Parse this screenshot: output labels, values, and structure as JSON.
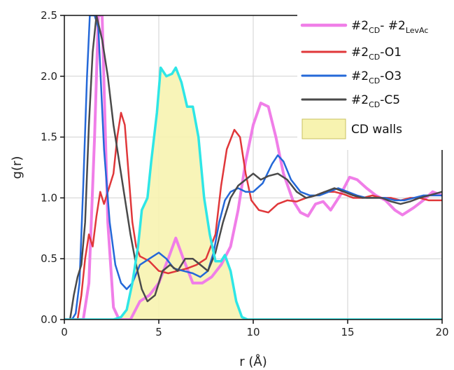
{
  "chart_data": {
    "type": "line",
    "xlabel": "r (Å)",
    "ylabel": "g(r)",
    "xlim": [
      0,
      20
    ],
    "ylim": [
      0,
      2.5
    ],
    "xticks": [
      "0",
      "5",
      "10",
      "15",
      "20"
    ],
    "yticks": [
      "0.0",
      "0.5",
      "1.0",
      "1.5",
      "2.0",
      "2.5"
    ],
    "grid": true,
    "legend_position": "top-right",
    "series": [
      {
        "name": "#2CD- #2LevAc",
        "label_main": "#2",
        "label_sub1": "CD",
        "label_mid": "- #2",
        "label_sub2": "LevAc",
        "color": "#f07ee8",
        "width": 4,
        "points": [
          [
            0,
            0
          ],
          [
            1.0,
            0
          ],
          [
            1.3,
            0.3
          ],
          [
            1.6,
            1.5
          ],
          [
            1.8,
            2.5
          ],
          [
            2.0,
            2.5
          ],
          [
            2.3,
            0.8
          ],
          [
            2.6,
            0.1
          ],
          [
            2.9,
            0.0
          ],
          [
            3.5,
            0.0
          ],
          [
            4.0,
            0.15
          ],
          [
            4.5,
            0.2
          ],
          [
            5.0,
            0.3
          ],
          [
            5.5,
            0.5
          ],
          [
            5.9,
            0.67
          ],
          [
            6.3,
            0.5
          ],
          [
            6.8,
            0.3
          ],
          [
            7.3,
            0.3
          ],
          [
            7.8,
            0.35
          ],
          [
            8.3,
            0.45
          ],
          [
            8.8,
            0.6
          ],
          [
            9.2,
            0.9
          ],
          [
            9.6,
            1.3
          ],
          [
            10.0,
            1.6
          ],
          [
            10.4,
            1.78
          ],
          [
            10.8,
            1.75
          ],
          [
            11.2,
            1.5
          ],
          [
            11.6,
            1.2
          ],
          [
            12.1,
            0.98
          ],
          [
            12.5,
            0.88
          ],
          [
            12.9,
            0.85
          ],
          [
            13.3,
            0.95
          ],
          [
            13.7,
            0.97
          ],
          [
            14.1,
            0.9
          ],
          [
            14.6,
            1.02
          ],
          [
            15.1,
            1.17
          ],
          [
            15.5,
            1.15
          ],
          [
            16.0,
            1.08
          ],
          [
            16.5,
            1.02
          ],
          [
            17.0,
            0.98
          ],
          [
            17.5,
            0.9
          ],
          [
            17.9,
            0.86
          ],
          [
            18.5,
            0.92
          ],
          [
            19.0,
            0.98
          ],
          [
            19.5,
            1.05
          ],
          [
            20.0,
            1.02
          ]
        ]
      },
      {
        "name": "#2CD-O1",
        "label_main": "#2",
        "label_sub1": "CD",
        "label_mid": "-O1",
        "label_sub2": "",
        "color": "#e0373a",
        "width": 2.5,
        "points": [
          [
            0,
            0
          ],
          [
            0.7,
            0
          ],
          [
            0.9,
            0.2
          ],
          [
            1.1,
            0.5
          ],
          [
            1.3,
            0.7
          ],
          [
            1.5,
            0.6
          ],
          [
            1.7,
            0.85
          ],
          [
            1.9,
            1.05
          ],
          [
            2.1,
            0.95
          ],
          [
            2.3,
            1.05
          ],
          [
            2.6,
            1.2
          ],
          [
            2.8,
            1.5
          ],
          [
            3.0,
            1.7
          ],
          [
            3.2,
            1.6
          ],
          [
            3.4,
            1.2
          ],
          [
            3.6,
            0.8
          ],
          [
            3.8,
            0.6
          ],
          [
            4.0,
            0.52
          ],
          [
            4.5,
            0.48
          ],
          [
            5.0,
            0.4
          ],
          [
            5.5,
            0.38
          ],
          [
            6.0,
            0.4
          ],
          [
            6.5,
            0.42
          ],
          [
            7.0,
            0.45
          ],
          [
            7.5,
            0.5
          ],
          [
            8.0,
            0.7
          ],
          [
            8.3,
            1.1
          ],
          [
            8.6,
            1.4
          ],
          [
            9.0,
            1.56
          ],
          [
            9.3,
            1.5
          ],
          [
            9.6,
            1.2
          ],
          [
            9.9,
            0.98
          ],
          [
            10.3,
            0.9
          ],
          [
            10.8,
            0.88
          ],
          [
            11.3,
            0.95
          ],
          [
            11.8,
            0.98
          ],
          [
            12.3,
            0.97
          ],
          [
            12.8,
            1.0
          ],
          [
            13.3,
            1.02
          ],
          [
            13.8,
            1.05
          ],
          [
            14.3,
            1.05
          ],
          [
            14.8,
            1.03
          ],
          [
            15.3,
            1.0
          ],
          [
            15.8,
            1.0
          ],
          [
            16.3,
            1.02
          ],
          [
            16.8,
            1.0
          ],
          [
            17.3,
            1.0
          ],
          [
            17.8,
            0.98
          ],
          [
            18.3,
            1.0
          ],
          [
            18.8,
            1.0
          ],
          [
            19.3,
            0.98
          ],
          [
            20.0,
            0.98
          ]
        ]
      },
      {
        "name": "#2CD-O3",
        "label_main": "#2",
        "label_sub1": "CD",
        "label_mid": "-O3",
        "label_sub2": "",
        "color": "#2468d8",
        "width": 2.5,
        "points": [
          [
            0,
            0
          ],
          [
            0.4,
            0
          ],
          [
            0.6,
            0.05
          ],
          [
            0.8,
            0.3
          ],
          [
            1.0,
            1.1
          ],
          [
            1.2,
            2.0
          ],
          [
            1.35,
            2.5
          ],
          [
            1.6,
            2.5
          ],
          [
            1.8,
            2.4
          ],
          [
            2.1,
            1.4
          ],
          [
            2.4,
            0.8
          ],
          [
            2.7,
            0.45
          ],
          [
            3.0,
            0.3
          ],
          [
            3.3,
            0.25
          ],
          [
            3.6,
            0.3
          ],
          [
            4.0,
            0.45
          ],
          [
            4.5,
            0.5
          ],
          [
            5.0,
            0.55
          ],
          [
            5.4,
            0.5
          ],
          [
            5.8,
            0.42
          ],
          [
            6.3,
            0.4
          ],
          [
            6.8,
            0.38
          ],
          [
            7.2,
            0.35
          ],
          [
            7.6,
            0.4
          ],
          [
            7.9,
            0.55
          ],
          [
            8.2,
            0.8
          ],
          [
            8.5,
            0.98
          ],
          [
            8.8,
            1.05
          ],
          [
            9.2,
            1.08
          ],
          [
            9.6,
            1.05
          ],
          [
            10.0,
            1.05
          ],
          [
            10.5,
            1.12
          ],
          [
            11.0,
            1.28
          ],
          [
            11.3,
            1.35
          ],
          [
            11.6,
            1.3
          ],
          [
            12.0,
            1.15
          ],
          [
            12.5,
            1.05
          ],
          [
            13.0,
            1.02
          ],
          [
            13.5,
            1.02
          ],
          [
            14.0,
            1.05
          ],
          [
            14.5,
            1.08
          ],
          [
            15.0,
            1.05
          ],
          [
            15.5,
            1.02
          ],
          [
            16.0,
            1.0
          ],
          [
            16.5,
            1.0
          ],
          [
            17.0,
            1.0
          ],
          [
            17.5,
            0.98
          ],
          [
            18.0,
            0.98
          ],
          [
            18.5,
            1.0
          ],
          [
            19.0,
            1.02
          ],
          [
            19.5,
            1.02
          ],
          [
            20.0,
            1.02
          ]
        ]
      },
      {
        "name": "#2CD-C5",
        "label_main": "#2",
        "label_sub1": "CD",
        "label_mid": "-C5",
        "label_sub2": "",
        "color": "#4a4a4a",
        "width": 2.5,
        "points": [
          [
            0,
            0
          ],
          [
            0.3,
            0
          ],
          [
            0.5,
            0.2
          ],
          [
            0.7,
            0.35
          ],
          [
            0.9,
            0.45
          ],
          [
            1.1,
            0.8
          ],
          [
            1.3,
            1.6
          ],
          [
            1.5,
            2.2
          ],
          [
            1.7,
            2.5
          ],
          [
            2.0,
            2.3
          ],
          [
            2.3,
            2.0
          ],
          [
            2.6,
            1.6
          ],
          [
            2.9,
            1.3
          ],
          [
            3.2,
            1.0
          ],
          [
            3.5,
            0.7
          ],
          [
            3.8,
            0.45
          ],
          [
            4.1,
            0.25
          ],
          [
            4.4,
            0.15
          ],
          [
            4.8,
            0.2
          ],
          [
            5.2,
            0.4
          ],
          [
            5.6,
            0.45
          ],
          [
            6.0,
            0.4
          ],
          [
            6.4,
            0.5
          ],
          [
            6.8,
            0.5
          ],
          [
            7.2,
            0.45
          ],
          [
            7.6,
            0.4
          ],
          [
            8.0,
            0.55
          ],
          [
            8.4,
            0.8
          ],
          [
            8.8,
            1.0
          ],
          [
            9.2,
            1.1
          ],
          [
            9.6,
            1.15
          ],
          [
            10.0,
            1.2
          ],
          [
            10.4,
            1.15
          ],
          [
            10.8,
            1.18
          ],
          [
            11.3,
            1.2
          ],
          [
            11.8,
            1.15
          ],
          [
            12.3,
            1.05
          ],
          [
            12.8,
            1.0
          ],
          [
            13.3,
            1.02
          ],
          [
            13.8,
            1.05
          ],
          [
            14.3,
            1.08
          ],
          [
            14.8,
            1.05
          ],
          [
            15.3,
            1.02
          ],
          [
            15.8,
            1.0
          ],
          [
            16.3,
            1.0
          ],
          [
            16.8,
            1.0
          ],
          [
            17.3,
            0.97
          ],
          [
            17.8,
            0.95
          ],
          [
            18.3,
            0.97
          ],
          [
            18.8,
            1.0
          ],
          [
            19.3,
            1.02
          ],
          [
            20.0,
            1.05
          ]
        ]
      },
      {
        "name": "CD walls",
        "label_main": "CD walls",
        "label_sub1": "",
        "label_mid": "",
        "label_sub2": "",
        "color": "#2ee6e6",
        "fill": "#f7f3b0",
        "fill_border": "#c8c060",
        "width": 3.5,
        "points": [
          [
            0,
            0
          ],
          [
            2.6,
            0
          ],
          [
            3.0,
            0.02
          ],
          [
            3.3,
            0.08
          ],
          [
            3.6,
            0.3
          ],
          [
            3.9,
            0.6
          ],
          [
            4.1,
            0.9
          ],
          [
            4.4,
            1.0
          ],
          [
            4.6,
            1.3
          ],
          [
            4.9,
            1.7
          ],
          [
            5.1,
            2.07
          ],
          [
            5.4,
            2.0
          ],
          [
            5.7,
            2.02
          ],
          [
            5.9,
            2.07
          ],
          [
            6.2,
            1.95
          ],
          [
            6.5,
            1.75
          ],
          [
            6.8,
            1.75
          ],
          [
            7.1,
            1.5
          ],
          [
            7.4,
            1.0
          ],
          [
            7.7,
            0.7
          ],
          [
            8.0,
            0.48
          ],
          [
            8.3,
            0.48
          ],
          [
            8.5,
            0.53
          ],
          [
            8.8,
            0.4
          ],
          [
            9.1,
            0.15
          ],
          [
            9.4,
            0.02
          ],
          [
            9.7,
            0
          ],
          [
            20,
            0
          ]
        ]
      }
    ]
  }
}
